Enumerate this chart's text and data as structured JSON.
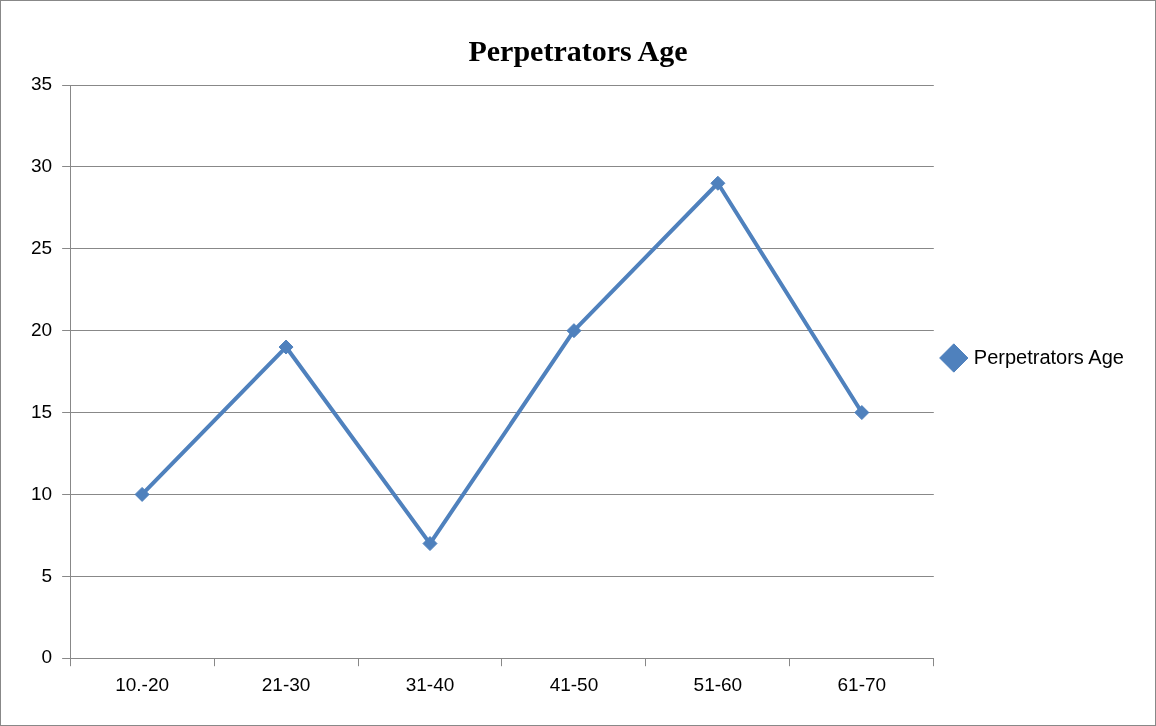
{
  "chart_data": {
    "type": "line",
    "title": "Perpetrators Age",
    "categories": [
      "10.-20",
      "21-30",
      "31-40",
      "41-50",
      "51-60",
      "61-70"
    ],
    "series": [
      {
        "name": "Perpetrators Age",
        "color": "#4f81bd",
        "values": [
          10,
          19,
          7,
          20,
          29,
          15
        ]
      }
    ],
    "ylim": [
      0,
      35
    ],
    "yticks": [
      0,
      5,
      10,
      15,
      20,
      25,
      30,
      35
    ],
    "grid": "y",
    "legend": "right",
    "marker": "diamond",
    "line_style": "solid"
  }
}
